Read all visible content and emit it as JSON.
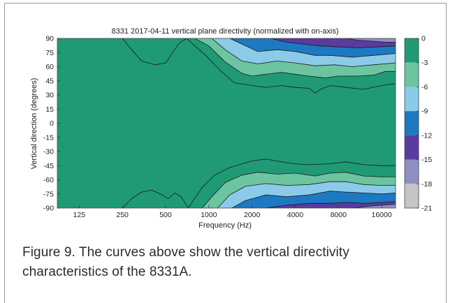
{
  "caption": "Figure 9. The curves above show the vertical directivity characteristics of the 8331A.",
  "chart_data": {
    "type": "heatmap",
    "title": "8331 2017-04-11 vertical plane directivity (normalized with on-axis)",
    "xlabel": "Frequency (Hz)",
    "ylabel": "Vertical direction (degrees)",
    "x_scale": "log",
    "xlim": [
      88,
      20000
    ],
    "ylim": [
      -90,
      90
    ],
    "x_ticks": [
      125,
      250,
      500,
      1000,
      2000,
      4000,
      8000,
      16000
    ],
    "x_tick_labels": [
      "125",
      "250",
      "500",
      "1000",
      "2000",
      "4000",
      "8000",
      "16000"
    ],
    "y_ticks": [
      90,
      75,
      60,
      45,
      30,
      15,
      0,
      -15,
      -30,
      -45,
      -60,
      -75,
      -90
    ],
    "y_tick_labels": [
      "90",
      "75",
      "60",
      "45",
      "30",
      "15",
      "0",
      "-15",
      "-30",
      "-45",
      "-60",
      "-75",
      "-90"
    ],
    "colorbar": {
      "ticks": [
        "0",
        "-3",
        "-6",
        "-9",
        "-12",
        "-15",
        "-18",
        "-21"
      ],
      "levels": [
        {
          "range": [
            -3,
            0
          ],
          "color": "#1f9a74"
        },
        {
          "range": [
            -6,
            -3
          ],
          "color": "#6cc4a0"
        },
        {
          "range": [
            -9,
            -6
          ],
          "color": "#8bcbe9"
        },
        {
          "range": [
            -12,
            -9
          ],
          "color": "#1d79c1"
        },
        {
          "range": [
            -15,
            -12
          ],
          "color": "#5a3ba1"
        },
        {
          "range": [
            -18,
            -15
          ],
          "color": "#8e8fc3"
        },
        {
          "range": [
            -21,
            -18
          ],
          "color": "#c5c5c5"
        }
      ]
    },
    "contours": [
      {
        "level": -3,
        "side": "top",
        "points": [
          [
            250,
            90
          ],
          [
            290,
            78
          ],
          [
            340,
            66
          ],
          [
            420,
            62
          ],
          [
            500,
            64
          ],
          [
            560,
            75
          ],
          [
            620,
            85
          ],
          [
            700,
            90
          ],
          [
            800,
            82
          ],
          [
            950,
            72
          ],
          [
            1200,
            56
          ],
          [
            1500,
            43
          ],
          [
            2000,
            40
          ],
          [
            2500,
            38
          ],
          [
            3200,
            40
          ],
          [
            4000,
            38
          ],
          [
            5000,
            37
          ],
          [
            5500,
            32
          ],
          [
            6000,
            36
          ],
          [
            7000,
            40
          ],
          [
            9000,
            38
          ],
          [
            12000,
            36
          ],
          [
            16000,
            40
          ],
          [
            20000,
            42
          ]
        ]
      },
      {
        "level": -6,
        "side": "top",
        "points": [
          [
            800,
            90
          ],
          [
            1000,
            82
          ],
          [
            1300,
            65
          ],
          [
            1700,
            53
          ],
          [
            2000,
            50
          ],
          [
            2500,
            52
          ],
          [
            3200,
            54
          ],
          [
            4000,
            52
          ],
          [
            5000,
            50
          ],
          [
            6500,
            48
          ],
          [
            8000,
            50
          ],
          [
            11000,
            50
          ],
          [
            14000,
            51
          ],
          [
            17000,
            55
          ],
          [
            20000,
            55
          ]
        ]
      },
      {
        "level": -9,
        "side": "top",
        "points": [
          [
            1050,
            90
          ],
          [
            1300,
            78
          ],
          [
            1700,
            66
          ],
          [
            2200,
            63
          ],
          [
            3000,
            66
          ],
          [
            4000,
            64
          ],
          [
            5500,
            61
          ],
          [
            7500,
            62
          ],
          [
            10000,
            60
          ],
          [
            14000,
            62
          ],
          [
            20000,
            64
          ]
        ]
      },
      {
        "level": -12,
        "side": "top",
        "points": [
          [
            1400,
            90
          ],
          [
            1700,
            84
          ],
          [
            2200,
            76
          ],
          [
            3000,
            78
          ],
          [
            4000,
            76
          ],
          [
            5500,
            72
          ],
          [
            7000,
            72
          ],
          [
            10000,
            70
          ],
          [
            14000,
            72
          ],
          [
            20000,
            74
          ]
        ]
      },
      {
        "level": -15,
        "side": "top",
        "points": [
          [
            2700,
            90
          ],
          [
            3500,
            86
          ],
          [
            4500,
            84
          ],
          [
            6000,
            82
          ],
          [
            8000,
            81
          ],
          [
            11000,
            80
          ],
          [
            15000,
            81
          ],
          [
            20000,
            82
          ]
        ]
      },
      {
        "level": -18,
        "side": "top",
        "points": [
          [
            9000,
            90
          ],
          [
            11000,
            88
          ],
          [
            14000,
            87
          ],
          [
            17000,
            86
          ],
          [
            20000,
            86
          ]
        ]
      },
      {
        "level": -3,
        "side": "bottom",
        "points": [
          [
            250,
            -90
          ],
          [
            290,
            -80
          ],
          [
            340,
            -73
          ],
          [
            400,
            -71
          ],
          [
            460,
            -75
          ],
          [
            520,
            -80
          ],
          [
            580,
            -74
          ],
          [
            640,
            -78
          ],
          [
            720,
            -90
          ],
          [
            780,
            -82
          ],
          [
            900,
            -68
          ],
          [
            1100,
            -55
          ],
          [
            1400,
            -47
          ],
          [
            2000,
            -40
          ],
          [
            2500,
            -38
          ],
          [
            3200,
            -41
          ],
          [
            4000,
            -43
          ],
          [
            5000,
            -44
          ],
          [
            7000,
            -43
          ],
          [
            9000,
            -41
          ],
          [
            12000,
            -44
          ],
          [
            16000,
            -45
          ],
          [
            20000,
            -45
          ]
        ]
      },
      {
        "level": -6,
        "side": "bottom",
        "points": [
          [
            900,
            -90
          ],
          [
            1050,
            -78
          ],
          [
            1300,
            -63
          ],
          [
            1700,
            -55
          ],
          [
            2200,
            -52
          ],
          [
            3000,
            -54
          ],
          [
            4000,
            -53
          ],
          [
            5500,
            -56
          ],
          [
            7000,
            -53
          ],
          [
            9000,
            -52
          ],
          [
            12000,
            -56
          ],
          [
            16000,
            -57
          ],
          [
            20000,
            -57
          ]
        ]
      },
      {
        "level": -9,
        "side": "bottom",
        "points": [
          [
            1150,
            -90
          ],
          [
            1400,
            -76
          ],
          [
            1800,
            -67
          ],
          [
            2500,
            -64
          ],
          [
            3500,
            -66
          ],
          [
            5000,
            -65
          ],
          [
            7000,
            -62
          ],
          [
            9000,
            -62
          ],
          [
            12000,
            -65
          ],
          [
            16000,
            -66
          ],
          [
            20000,
            -66
          ]
        ]
      },
      {
        "level": -12,
        "side": "bottom",
        "points": [
          [
            1450,
            -90
          ],
          [
            1800,
            -82
          ],
          [
            2500,
            -76
          ],
          [
            3500,
            -78
          ],
          [
            5000,
            -76
          ],
          [
            7000,
            -72
          ],
          [
            9000,
            -73
          ],
          [
            12000,
            -74
          ],
          [
            16000,
            -75
          ],
          [
            20000,
            -74
          ]
        ]
      },
      {
        "level": -15,
        "side": "bottom",
        "points": [
          [
            2500,
            -90
          ],
          [
            3500,
            -87
          ],
          [
            5000,
            -85
          ],
          [
            7000,
            -85
          ],
          [
            9000,
            -84
          ],
          [
            12000,
            -85
          ],
          [
            16000,
            -84
          ],
          [
            20000,
            -83
          ]
        ]
      },
      {
        "level": -18,
        "side": "bottom",
        "points": [
          [
            10000,
            -90
          ],
          [
            13000,
            -88
          ],
          [
            16000,
            -87
          ],
          [
            20000,
            -86
          ]
        ]
      }
    ]
  }
}
